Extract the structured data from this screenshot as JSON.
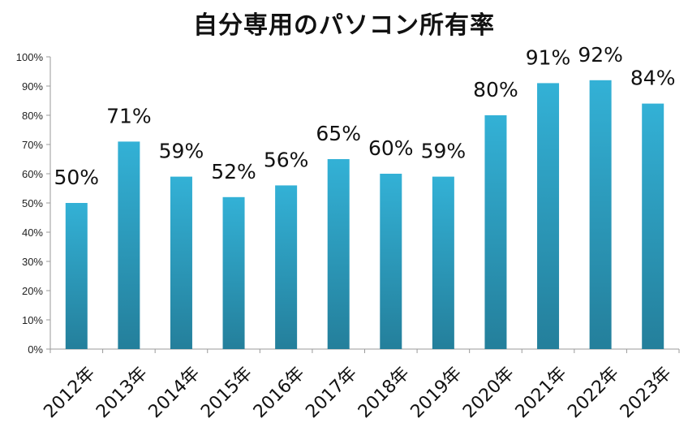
{
  "chart_data": {
    "type": "bar",
    "title": "自分専用のパソコン所有率",
    "xlabel": "",
    "ylabel": "",
    "categories": [
      "2012年",
      "2013年",
      "2014年",
      "2015年",
      "2016年",
      "2017年",
      "2018年",
      "2019年",
      "2020年",
      "2021年",
      "2022年",
      "2023年"
    ],
    "values": [
      50,
      71,
      59,
      52,
      56,
      65,
      60,
      59,
      80,
      91,
      92,
      84
    ],
    "data_labels": [
      "50%",
      "71%",
      "59%",
      "52%",
      "56%",
      "65%",
      "60%",
      "59%",
      "80%",
      "91%",
      "92%",
      "84%"
    ],
    "ylim": [
      0,
      100
    ],
    "yticks": [
      "0%",
      "10%",
      "20%",
      "30%",
      "40%",
      "50%",
      "60%",
      "70%",
      "80%",
      "90%",
      "100%"
    ],
    "grid": false,
    "legend": "none",
    "bar_color_top": "#33b1d6",
    "bar_color_bottom": "#247f9b"
  }
}
